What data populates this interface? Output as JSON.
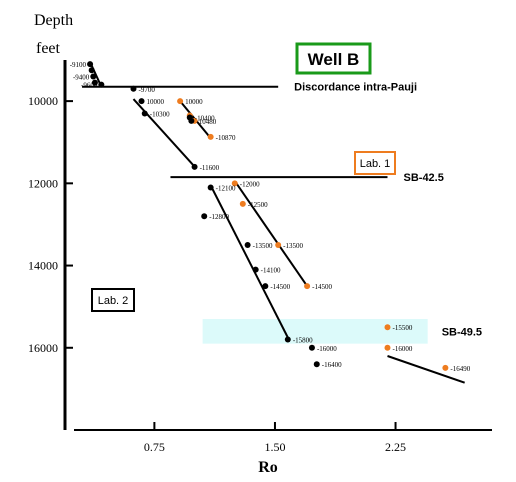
{
  "chart_data": {
    "type": "scatter",
    "title": "Well B",
    "xlabel": "Ro",
    "ylabel_line1": "Depth",
    "ylabel_line2": "feet",
    "x_range": [
      0.25,
      2.85
    ],
    "y_range": [
      9000,
      18000
    ],
    "y_inverted": true,
    "x_ticks": [
      0.75,
      1.5,
      2.25
    ],
    "x_tick_labels": [
      "0.75",
      "1.50",
      "2.25"
    ],
    "y_ticks": [
      10000,
      12000,
      14000,
      16000
    ],
    "y_tick_labels": [
      "10000",
      "12000",
      "14000",
      "16000"
    ],
    "grid": false,
    "colors": {
      "lab1": "#ee7c1f",
      "lab2": "#000000",
      "title_border": "#1a9a1a",
      "band": "#dcfafa"
    },
    "boxes": [
      {
        "label": "Lab. 1",
        "border_color": "#ee7c1f"
      },
      {
        "label": "Lab. 2",
        "border_color": "#000000"
      }
    ],
    "horizons": [
      {
        "label": "Discordance  intra-Pauji",
        "depth": 9650,
        "ro_from": 0.3,
        "ro_to": 1.52
      },
      {
        "label": "SB-42.5",
        "depth": 11850,
        "ro_from": 0.85,
        "ro_to": 2.2
      },
      {
        "label": "SB-49.5",
        "depth": 15600,
        "ro_from": 1.05,
        "ro_to": 2.45,
        "band_top": 15300,
        "band_bottom": 15900
      }
    ],
    "series": [
      {
        "name": "Lab. 1",
        "color": "#ee7c1f",
        "points": [
          {
            "ro": 0.91,
            "depth": 10000,
            "label": "10000"
          },
          {
            "ro": 0.97,
            "depth": 10350,
            "label": ""
          },
          {
            "ro": 1.0,
            "depth": 10480,
            "label": ""
          },
          {
            "ro": 1.1,
            "depth": 10870,
            "label": "-10870"
          },
          {
            "ro": 1.25,
            "depth": 12000,
            "label": "-12000"
          },
          {
            "ro": 1.3,
            "depth": 12500,
            "label": "-12500"
          },
          {
            "ro": 1.52,
            "depth": 13500,
            "label": "-13500"
          },
          {
            "ro": 1.7,
            "depth": 14500,
            "label": "-14500"
          },
          {
            "ro": 2.2,
            "depth": 15500,
            "label": "-15500"
          },
          {
            "ro": 2.2,
            "depth": 16000,
            "label": "-16000"
          },
          {
            "ro": 2.56,
            "depth": 16490,
            "label": "-16490"
          }
        ]
      },
      {
        "name": "Lab. 2",
        "color": "#000000",
        "points": [
          {
            "ro": 0.35,
            "depth": 9100,
            "label": "-9100"
          },
          {
            "ro": 0.36,
            "depth": 9250,
            "label": ""
          },
          {
            "ro": 0.37,
            "depth": 9400,
            "label": "-9400"
          },
          {
            "ro": 0.38,
            "depth": 9550,
            "label": ""
          },
          {
            "ro": 0.42,
            "depth": 9600,
            "label": "-9600"
          },
          {
            "ro": 0.62,
            "depth": 9700,
            "label": "-9700"
          },
          {
            "ro": 0.67,
            "depth": 10000,
            "label": "10000"
          },
          {
            "ro": 0.69,
            "depth": 10300,
            "label": "-10300"
          },
          {
            "ro": 0.97,
            "depth": 10400,
            "label": "-10400"
          },
          {
            "ro": 0.98,
            "depth": 10480,
            "label": "-10480"
          },
          {
            "ro": 1.0,
            "depth": 11600,
            "label": "-11600"
          },
          {
            "ro": 1.1,
            "depth": 12100,
            "label": "-12100"
          },
          {
            "ro": 1.06,
            "depth": 12800,
            "label": "-12800"
          },
          {
            "ro": 1.33,
            "depth": 13500,
            "label": "-13500"
          },
          {
            "ro": 1.38,
            "depth": 14100,
            "label": "-14100"
          },
          {
            "ro": 1.44,
            "depth": 14500,
            "label": "-14500"
          },
          {
            "ro": 1.58,
            "depth": 15800,
            "label": "-15800"
          },
          {
            "ro": 1.73,
            "depth": 16000,
            "label": "-16000"
          },
          {
            "ro": 1.76,
            "depth": 16400,
            "label": "-16400"
          }
        ]
      }
    ],
    "trend_lines": [
      {
        "color": "#000000",
        "from": [
          0.35,
          9050
        ],
        "to": [
          0.42,
          9650
        ]
      },
      {
        "color": "#000000",
        "from": [
          0.62,
          9950
        ],
        "to": [
          0.99,
          11550
        ]
      },
      {
        "color": "#000000",
        "from": [
          0.91,
          10000
        ],
        "to": [
          1.1,
          10900
        ]
      },
      {
        "color": "#000000",
        "from": [
          1.1,
          12050
        ],
        "to": [
          1.58,
          15750
        ]
      },
      {
        "color": "#000000",
        "from": [
          1.26,
          12000
        ],
        "to": [
          1.7,
          14500
        ]
      },
      {
        "color": "#000000",
        "from": [
          2.2,
          16200
        ],
        "to": [
          2.68,
          16850
        ]
      }
    ]
  }
}
